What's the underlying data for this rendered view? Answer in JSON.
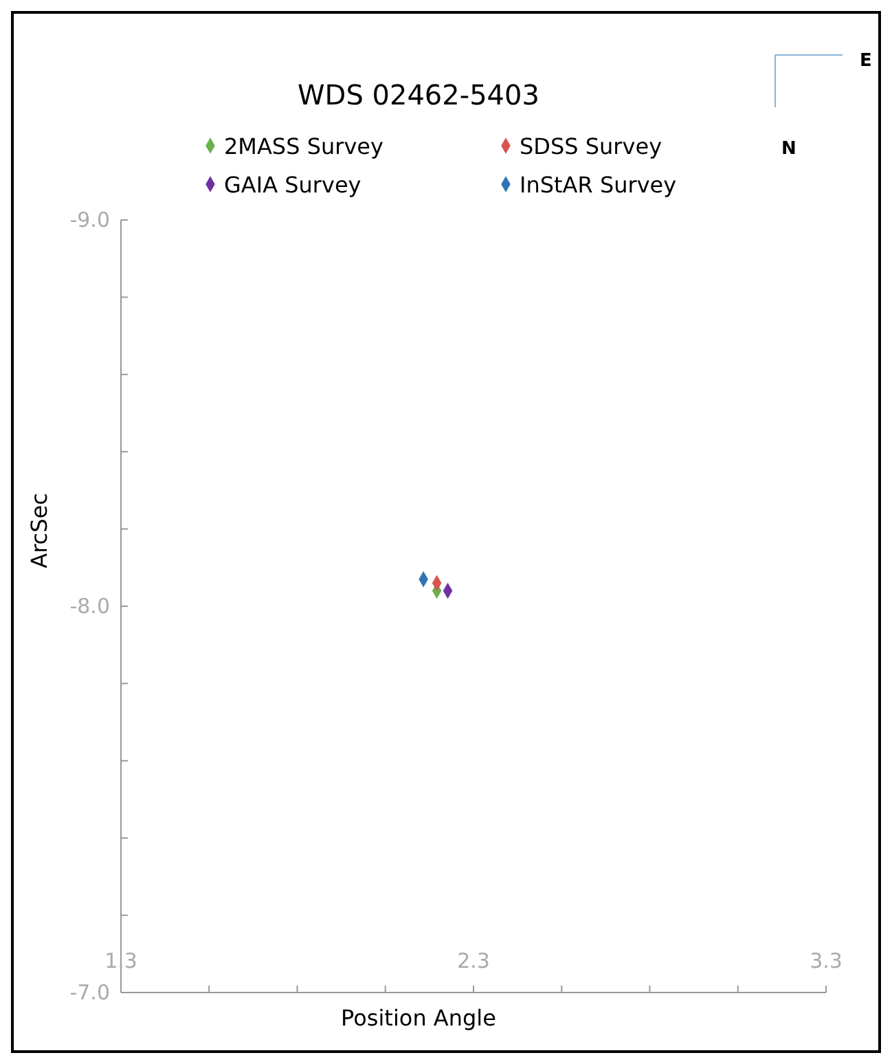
{
  "chart_data": {
    "type": "scatter",
    "title": "WDS 02462-5403",
    "xlabel": "Position Angle",
    "ylabel": "ArcSec",
    "series": [
      {
        "name": "2MASS Survey",
        "color": "#6ab04c",
        "x": [
          2.196
        ],
        "values": [
          -8.04
        ]
      },
      {
        "name": "SDSS Survey",
        "color": "#d9534f",
        "x": [
          2.196
        ],
        "values": [
          -8.06
        ]
      },
      {
        "name": "GAIA Survey",
        "color": "#7030a0",
        "x": [
          2.227
        ],
        "values": [
          -8.04
        ]
      },
      {
        "name": "InStAR Survey",
        "color": "#2e75b6",
        "x": [
          2.158
        ],
        "values": [
          -8.07
        ]
      }
    ],
    "xlim": [
      1.3,
      3.3
    ],
    "xticks": [
      1.3,
      {
        "value": 1.55,
        "label": null
      },
      {
        "value": 1.8,
        "label": null
      },
      {
        "value": 2.05,
        "label": null
      },
      2.3,
      {
        "value": 2.55,
        "label": null
      },
      {
        "value": 2.8,
        "label": null
      },
      {
        "value": 3.05,
        "label": null
      },
      3.3
    ],
    "ylim": [
      -7.0,
      -9.0
    ],
    "yticks": [
      {
        "value": -9,
        "label": "-9.0"
      },
      {
        "value": -8.8,
        "label": null
      },
      {
        "value": -8.6,
        "label": null
      },
      {
        "value": -8.4,
        "label": null
      },
      {
        "value": -8.2,
        "label": null
      },
      {
        "value": -8,
        "label": "-8.0"
      },
      {
        "value": -7.8,
        "label": null
      },
      {
        "value": -7.6,
        "label": null
      },
      {
        "value": -7.4,
        "label": null
      },
      {
        "value": -7.2,
        "label": null
      },
      {
        "value": -7,
        "label": "-7.0"
      }
    ],
    "annotations": [
      "E",
      "N"
    ],
    "marker": "diamond",
    "legend": "top",
    "grid": false
  }
}
